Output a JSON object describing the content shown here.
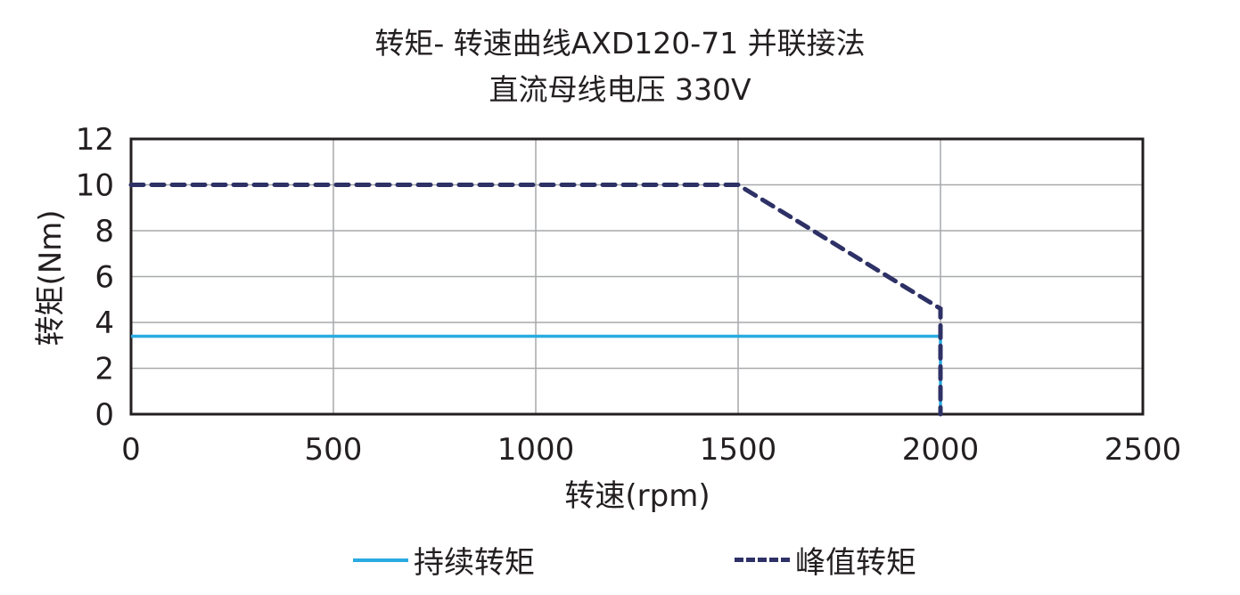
{
  "title": {
    "line1": "转矩- 转速曲线AXD120-71 并联接法",
    "line2": "直流母线电压 330V"
  },
  "chart_data": {
    "type": "line",
    "title": "转矩- 转速曲线AXD120-71 并联接法 直流母线电压 330V",
    "xlabel": "转速(rpm)",
    "ylabel": "转矩(Nm)",
    "xlim": [
      0,
      2500
    ],
    "ylim": [
      0,
      12
    ],
    "xticks": [
      0,
      500,
      1000,
      1500,
      2000,
      2500
    ],
    "yticks": [
      0,
      2,
      4,
      6,
      8,
      10,
      12
    ],
    "grid": true,
    "legend_position": "bottom",
    "series": [
      {
        "name": "持续转矩",
        "style": "solid",
        "color": "#29abe2",
        "x": [
          0,
          2000,
          2000
        ],
        "y": [
          3.4,
          3.4,
          0
        ]
      },
      {
        "name": "峰值转矩",
        "style": "dashed",
        "color": "#2e3166",
        "x": [
          0,
          1500,
          2000,
          2000
        ],
        "y": [
          10,
          10,
          4.6,
          0
        ]
      }
    ]
  },
  "colors": {
    "continuous": "#29abe2",
    "peak": "#2e3166",
    "grid": "#a7a9ac",
    "axis": "#231f20"
  }
}
